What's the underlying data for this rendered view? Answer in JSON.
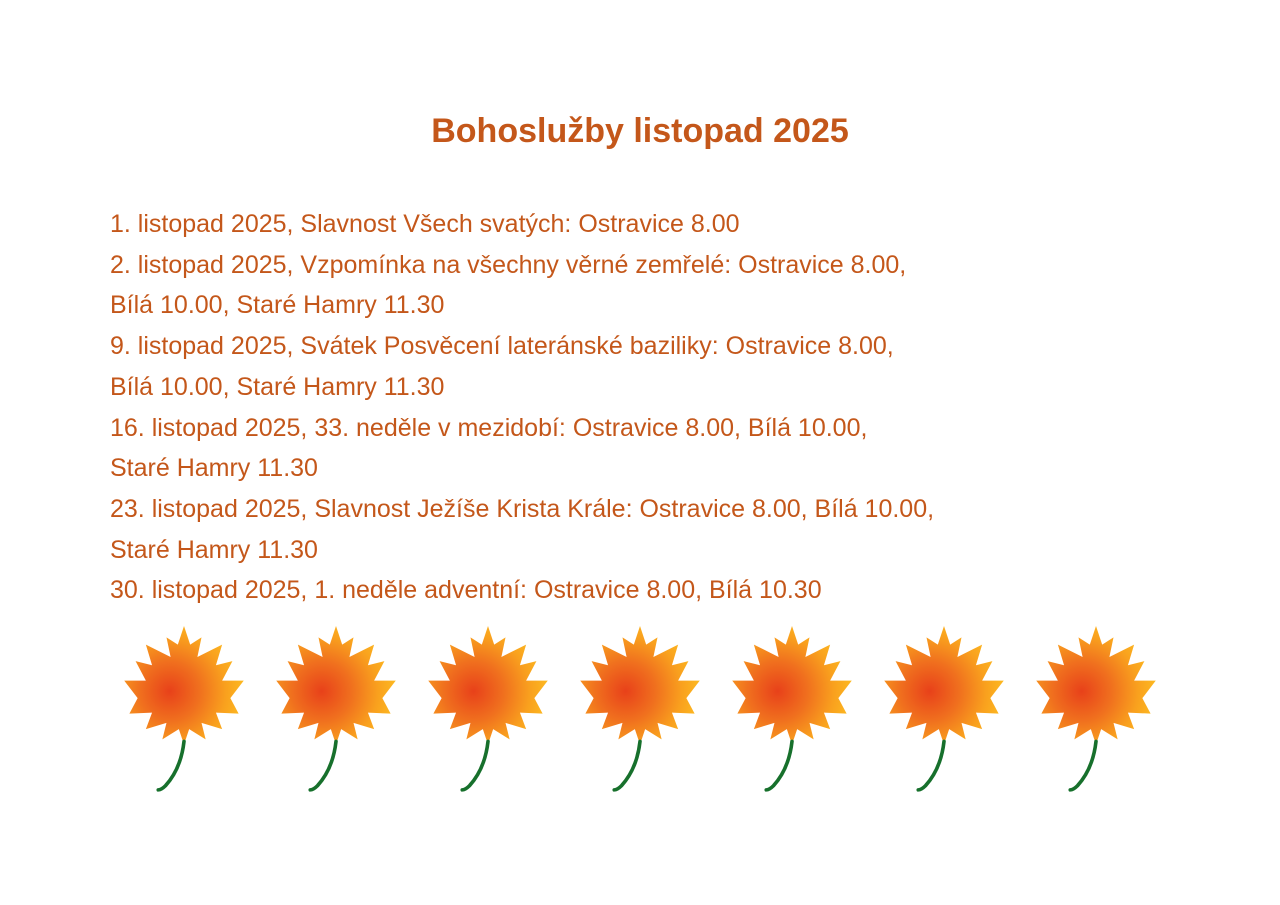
{
  "page": {
    "background": "#FFFFFF",
    "title": "Bohoslužby listopad 2025",
    "title_color": "#C4571A",
    "text_color": "#C4571A"
  },
  "schedule": {
    "lines": [
      "1. listopad 2025, Slavnost Všech svatých: Ostravice 8.00",
      "2. listopad 2025, Vzpomínka na všechny věrné zemřelé: Ostravice 8.00,",
      "Bílá 10.00, Staré Hamry 11.30",
      "9. listopad 2025, Svátek Posvěcení lateránské baziliky: Ostravice 8.00,",
      "Bílá 10.00, Staré Hamry 11.30",
      "16. listopad 2025, 33. neděle v mezidobí: Ostravice 8.00, Bílá 10.00,",
      "Staré Hamry 11.30",
      "23. listopad 2025, Slavnost Ježíše Krista Krále: Ostravice 8.00, Bílá 10.00,",
      "Staré Hamry 11.30",
      "30. listopad 2025, 1. neděle adventní: Ostravice 8.00, Bílá 10.30"
    ]
  },
  "decoration": {
    "leaf_icon": "maple-leaf-icon",
    "leaf_count": 7,
    "leaf_center_color": "#E8411A",
    "leaf_mid_color": "#F0701E",
    "leaf_outer_color": "#F9A01E",
    "leaf_edge_color": "#FFC822",
    "stem_color": "#17702C"
  }
}
